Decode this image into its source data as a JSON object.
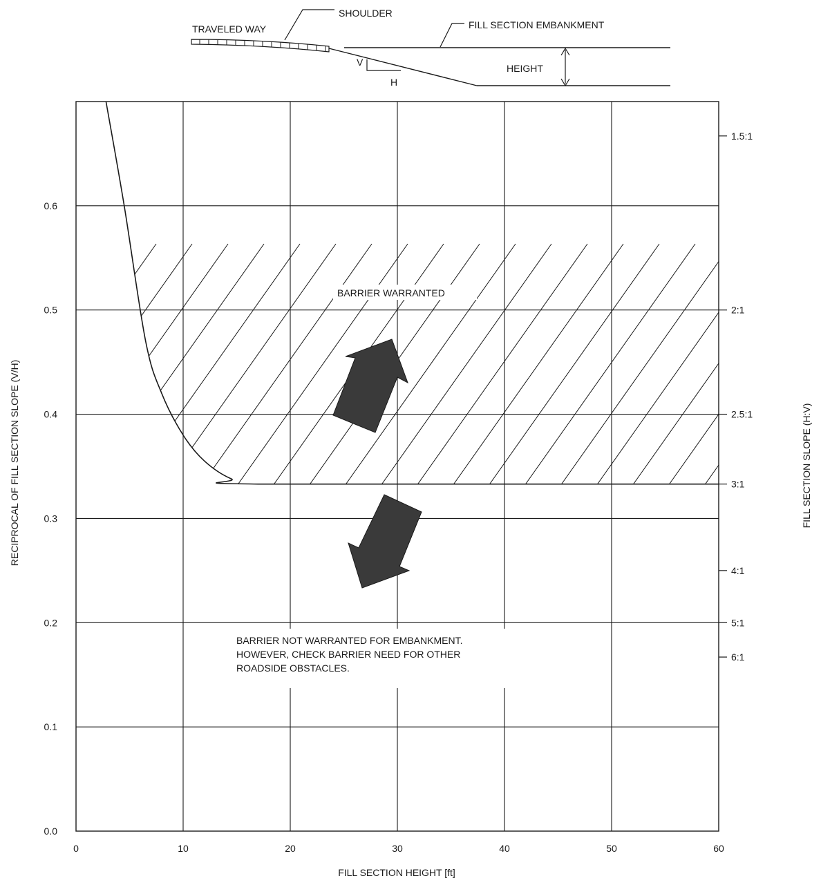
{
  "chart_data": {
    "type": "area",
    "xlabel": "FILL SECTION HEIGHT [ft]",
    "ylabel": "RECIPROCAL OF FILL SECTION SLOPE (V/H)",
    "y2label": "FILL SECTION SLOPE (H:V)",
    "xlim": [
      0,
      60
    ],
    "ylim": [
      0,
      0.7
    ],
    "x_ticks": [
      0,
      10,
      20,
      30,
      40,
      50,
      60
    ],
    "y_ticks": [
      0.0,
      0.1,
      0.2,
      0.3,
      0.4,
      0.5,
      0.6
    ],
    "y_tick_labels": [
      "0.0",
      "0.1",
      "0.2",
      "0.3",
      "0.4",
      "0.5",
      "0.6"
    ],
    "right_axis_ticks": [
      {
        "label": "1.5:1",
        "value": 0.667
      },
      {
        "label": "2:1",
        "value": 0.5
      },
      {
        "label": "2.5:1",
        "value": 0.4
      },
      {
        "label": "3:1",
        "value": 0.333
      },
      {
        "label": "4:1",
        "value": 0.25
      },
      {
        "label": "5:1",
        "value": 0.2
      },
      {
        "label": "6:1",
        "value": 0.167
      }
    ],
    "grid": true,
    "warrant_boundary": {
      "x": [
        2.8,
        4.5,
        6.5,
        8.0,
        10.0,
        12.0,
        14.5,
        17.0,
        60.0
      ],
      "y": [
        0.7,
        0.6,
        0.47,
        0.42,
        0.38,
        0.355,
        0.338,
        0.333,
        0.333
      ]
    },
    "region_labels": {
      "warranted": "BARRIER WARRANTED",
      "not_warranted": [
        "BARRIER NOT WARRANTED FOR EMBANKMENT.",
        "HOWEVER, CHECK BARRIER NEED FOR OTHER",
        "ROADSIDE OBSTACLES."
      ]
    },
    "inset_labels": {
      "traveled_way": "TRAVELED WAY",
      "shoulder": "SHOULDER",
      "embankment": "FILL SECTION EMBANKMENT",
      "height": "HEIGHT",
      "v": "V",
      "h": "H"
    },
    "colors": {
      "line": "#1a1a1a",
      "arrow": "#3a3a3a"
    }
  }
}
